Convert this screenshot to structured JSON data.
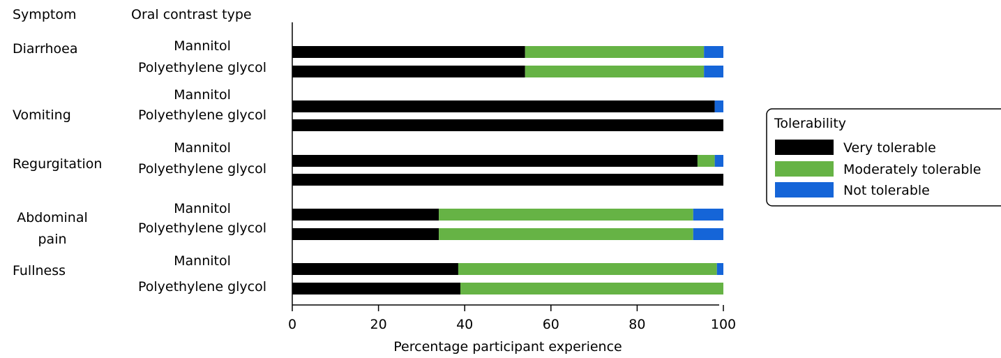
{
  "chart_data": {
    "type": "bar",
    "orientation": "horizontal",
    "stacked": true,
    "column_headers": {
      "symptom": "Symptom",
      "contrast": "Oral contrast type"
    },
    "groups": [
      {
        "symptom": "Diarrhoea",
        "categories": [
          "Mannitol",
          "Polyethylene glycol"
        ]
      },
      {
        "symptom": "Vomiting",
        "categories": [
          "Mannitol",
          "Polyethylene glycol"
        ]
      },
      {
        "symptom": "Regurgitation",
        "categories": [
          "Mannitol",
          "Polyethylene glycol"
        ]
      },
      {
        "symptom": "Abdominal pain",
        "categories": [
          "Mannitol",
          "Polyethylene glycol"
        ]
      },
      {
        "symptom": "Fullness",
        "categories": [
          "Mannitol",
          "Polyethylene glycol"
        ]
      }
    ],
    "series": [
      {
        "name": "Very tolerable",
        "color": "#000000",
        "values": [
          54,
          54,
          98,
          100,
          94,
          100,
          34,
          34,
          38.5,
          39
        ]
      },
      {
        "name": "Moderately tolerable",
        "color": "#66b345",
        "values": [
          41.5,
          41.5,
          0,
          0,
          4,
          0,
          59,
          59,
          60,
          61
        ]
      },
      {
        "name": "Not tolerable",
        "color": "#1565d8",
        "values": [
          4.5,
          4.5,
          2,
          0,
          2,
          0,
          7,
          7,
          1.5,
          0
        ]
      }
    ],
    "xlabel": "Percentage participant experience",
    "xlim": [
      0,
      100
    ],
    "xticks": [
      0,
      20,
      40,
      60,
      80,
      100
    ],
    "legend": {
      "title": "Tolerability",
      "placement": "right"
    },
    "grid": false
  }
}
